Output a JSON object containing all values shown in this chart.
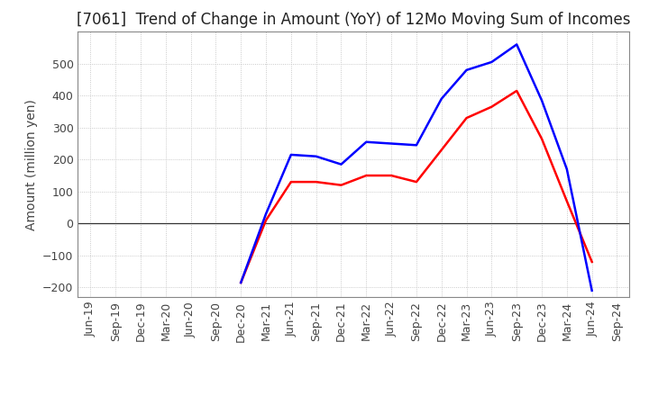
{
  "title": "[7061]  Trend of Change in Amount (YoY) of 12Mo Moving Sum of Incomes",
  "ylabel": "Amount (million yen)",
  "x_labels": [
    "Jun-19",
    "Sep-19",
    "Dec-19",
    "Mar-20",
    "Jun-20",
    "Sep-20",
    "Dec-20",
    "Mar-21",
    "Jun-21",
    "Sep-21",
    "Dec-21",
    "Mar-22",
    "Jun-22",
    "Sep-22",
    "Dec-22",
    "Mar-23",
    "Jun-23",
    "Sep-23",
    "Dec-23",
    "Mar-24",
    "Jun-24",
    "Sep-24"
  ],
  "ordinary_income": [
    null,
    null,
    null,
    null,
    null,
    null,
    -185,
    30,
    215,
    210,
    185,
    255,
    250,
    245,
    390,
    480,
    505,
    560,
    385,
    170,
    -210,
    null
  ],
  "net_income": [
    null,
    null,
    null,
    null,
    null,
    null,
    -185,
    10,
    130,
    130,
    120,
    150,
    150,
    130,
    230,
    330,
    365,
    415,
    265,
    70,
    -120,
    null
  ],
  "ordinary_color": "#0000ff",
  "net_color": "#ff0000",
  "ylim_min": -230,
  "ylim_max": 600,
  "yticks": [
    -200,
    -100,
    0,
    100,
    200,
    300,
    400,
    500
  ],
  "background_color": "#ffffff",
  "grid_color": "#bbbbbb",
  "title_fontsize": 12,
  "axis_fontsize": 10,
  "tick_fontsize": 9,
  "linewidth": 1.8
}
